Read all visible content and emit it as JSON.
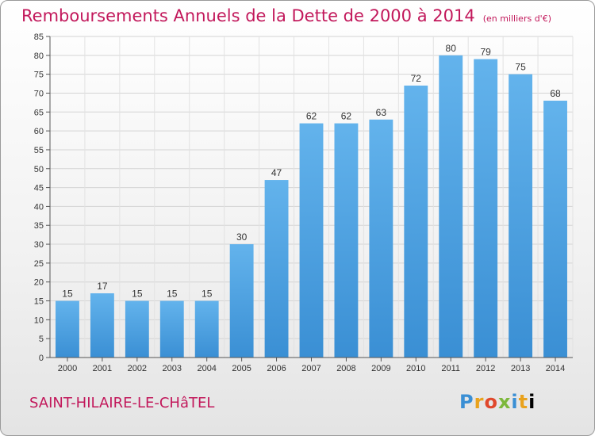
{
  "chart_data": {
    "type": "bar",
    "title": "Remboursements Annuels de la Dette de 2000 à 2014",
    "subtitle": "(en milliers d'€)",
    "categories": [
      "2000",
      "2001",
      "2002",
      "2003",
      "2004",
      "2005",
      "2006",
      "2007",
      "2008",
      "2009",
      "2010",
      "2011",
      "2012",
      "2013",
      "2014"
    ],
    "values": [
      15,
      17,
      15,
      15,
      15,
      30,
      47,
      62,
      62,
      63,
      72,
      80,
      79,
      75,
      68
    ],
    "ylim": [
      0,
      85
    ],
    "yticks": [
      0,
      5,
      10,
      15,
      20,
      25,
      30,
      35,
      40,
      45,
      50,
      55,
      60,
      65,
      70,
      75,
      80,
      85
    ],
    "grid": true,
    "bar_color": "#3a8fd4",
    "bar_color_light": "#63b3ec",
    "data_labels": true
  },
  "footer": {
    "place": "SAINT-HILAIRE-LE-CHâTEL",
    "logo_letters": [
      "P",
      "r",
      "o",
      "x",
      "i",
      "t",
      "i"
    ]
  }
}
